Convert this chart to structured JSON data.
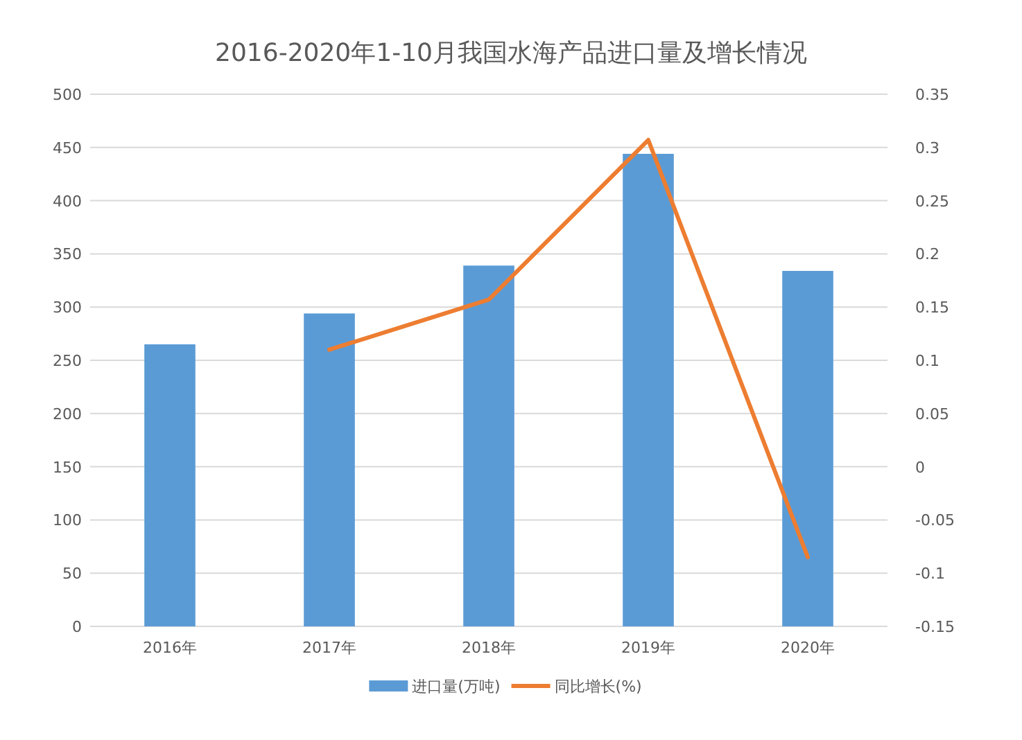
{
  "chart_data": {
    "type": "bar",
    "title": "2016-2020年1-10月我国水海产品进口量及增长情况",
    "categories": [
      "2016年",
      "2017年",
      "2018年",
      "2019年",
      "2020年"
    ],
    "series": [
      {
        "name": "进口量(万吨)",
        "color": "#5b9bd5",
        "values": [
          265,
          294,
          339,
          444,
          334
        ]
      },
      {
        "name": "同比增长(%)",
        "type": "line",
        "axis": "y2",
        "color": "#ed7d31",
        "values": [
          null,
          0.11,
          0.157,
          0.307,
          -0.085
        ]
      }
    ],
    "ylim": [
      0,
      500
    ],
    "yticks": [
      0,
      50,
      100,
      150,
      200,
      250,
      300,
      350,
      400,
      450,
      500
    ],
    "y2lim": [
      -0.15,
      0.35
    ],
    "y2ticks": [
      -0.15,
      -0.1,
      -0.05,
      0,
      0.05,
      0.1,
      0.15,
      0.2,
      0.25,
      0.3,
      0.35
    ],
    "grid": "y",
    "legend": "bottom"
  }
}
